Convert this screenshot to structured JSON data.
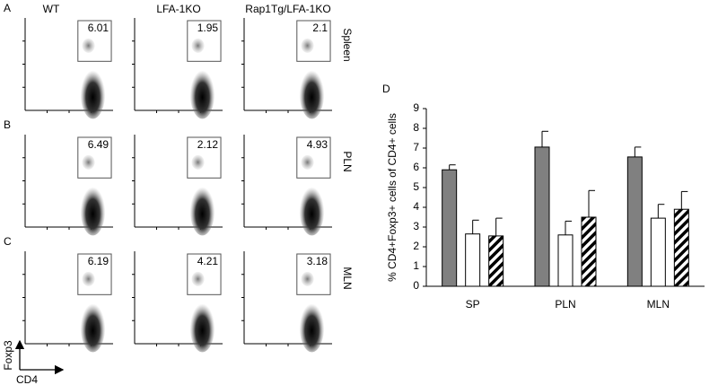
{
  "panel_labels": [
    "A",
    "B",
    "C",
    "D"
  ],
  "flow": {
    "columns": [
      "WT",
      "LFA-1KO",
      "Rap1Tg/LFA-1KO"
    ],
    "rows": [
      {
        "label": "Spleen",
        "gates": [
          "6.01",
          "1.95",
          "2.1"
        ]
      },
      {
        "label": "PLN",
        "gates": [
          "6.49",
          "2.12",
          "4.93"
        ]
      },
      {
        "label": "MLN",
        "gates": [
          "6.19",
          "4.21",
          "3.18"
        ]
      }
    ],
    "x_axis_label": "CD4",
    "y_axis_label": "Foxp3"
  },
  "chart_data": {
    "type": "bar",
    "y_label": "% CD4+Foxp3+ cells of CD4+ cells",
    "categories": [
      "SP",
      "PLN",
      "MLN"
    ],
    "series": [
      {
        "color": "#808080",
        "values": [
          5.9,
          7.05,
          6.55
        ],
        "errors": [
          0.25,
          0.8,
          0.5
        ]
      },
      {
        "color": "#ffffff",
        "values": [
          2.65,
          2.6,
          3.45
        ],
        "errors": [
          0.7,
          0.7,
          0.7
        ]
      },
      {
        "color": "#ffffff",
        "hatch": true,
        "values": [
          2.55,
          3.5,
          3.9
        ],
        "errors": [
          0.9,
          1.35,
          0.9
        ]
      }
    ],
    "ylim": [
      0,
      9
    ],
    "yticks": [
      0,
      1,
      2,
      3,
      4,
      5,
      6,
      7,
      8,
      9
    ]
  }
}
